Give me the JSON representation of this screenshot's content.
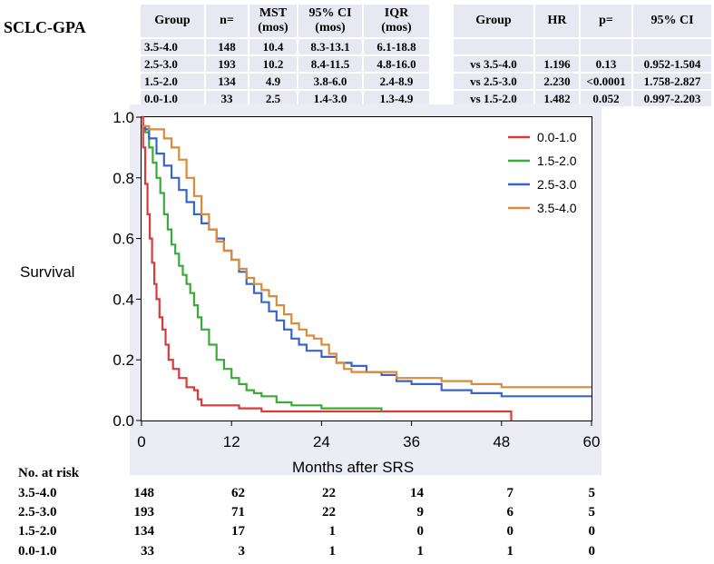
{
  "title": "SCLC-GPA",
  "table_left": {
    "headers": [
      [
        "Group"
      ],
      [
        "n="
      ],
      [
        "MST",
        "(mos)"
      ],
      [
        "95% CI",
        "(mos)"
      ],
      [
        "IQR",
        "(mos)"
      ]
    ],
    "rows": [
      [
        "3.5-4.0",
        "148",
        "10.4",
        "8.3-13.1",
        "6.1-18.8"
      ],
      [
        "2.5-3.0",
        "193",
        "10.2",
        "8.4-11.5",
        "4.8-16.0"
      ],
      [
        "1.5-2.0",
        "134",
        "4.9",
        "3.8-6.0",
        "2.4-8.9"
      ],
      [
        "0.0-1.0",
        "33",
        "2.5",
        "1.4-3.0",
        "1.3-4.9"
      ]
    ]
  },
  "table_right": {
    "headers": [
      "Group",
      "HR",
      "p=",
      "95% CI"
    ],
    "rows": [
      [
        "",
        "",
        "",
        ""
      ],
      [
        "vs 3.5-4.0",
        "1.196",
        "0.13",
        "0.952-1.504"
      ],
      [
        "vs 2.5-3.0",
        "2.230",
        "<0.0001",
        "1.758-2.827"
      ],
      [
        "vs 1.5-2.0",
        "1.482",
        "0.052",
        "0.997-2.203"
      ]
    ]
  },
  "risk_table": {
    "title": "No. at risk",
    "rows": [
      {
        "group": "3.5-4.0",
        "values": [
          "148",
          "62",
          "22",
          "14",
          "7",
          "5"
        ]
      },
      {
        "group": "2.5-3.0",
        "values": [
          "193",
          "71",
          "22",
          "9",
          "6",
          "5"
        ]
      },
      {
        "group": "1.5-2.0",
        "values": [
          "134",
          "17",
          "1",
          "0",
          "0",
          "0"
        ]
      },
      {
        "group": "0.0-1.0",
        "values": [
          "33",
          "3",
          "1",
          "1",
          "1",
          "0"
        ]
      }
    ]
  },
  "chart_data": {
    "type": "line",
    "title": "",
    "xlabel": "Months after SRS",
    "ylabel": "Survival",
    "xlim": [
      0,
      60
    ],
    "ylim": [
      0,
      1.0
    ],
    "x_ticks": [
      0,
      12,
      24,
      36,
      48,
      60
    ],
    "y_ticks": [
      "0.0",
      "0.2",
      "0.4",
      "0.6",
      "0.8",
      "1.0"
    ],
    "legend": "top-right",
    "series": [
      {
        "name": "0.0-1.0",
        "color": "#d93a3a",
        "points": [
          [
            0,
            1.0
          ],
          [
            0.2,
            0.9
          ],
          [
            0.5,
            0.78
          ],
          [
            0.8,
            0.68
          ],
          [
            1.1,
            0.6
          ],
          [
            1.4,
            0.52
          ],
          [
            1.7,
            0.45
          ],
          [
            2.0,
            0.4
          ],
          [
            2.4,
            0.34
          ],
          [
            2.8,
            0.3
          ],
          [
            3.2,
            0.25
          ],
          [
            3.6,
            0.2
          ],
          [
            4.2,
            0.17
          ],
          [
            5.0,
            0.14
          ],
          [
            6.0,
            0.11
          ],
          [
            7.0,
            0.1
          ],
          [
            7.5,
            0.07
          ],
          [
            8.0,
            0.05
          ],
          [
            12.0,
            0.05
          ],
          [
            13.0,
            0.04
          ],
          [
            16.0,
            0.03
          ],
          [
            18.0,
            0.03
          ],
          [
            24.0,
            0.03
          ],
          [
            48.0,
            0.03
          ],
          [
            49.3,
            0.03
          ],
          [
            49.3,
            0.0
          ]
        ]
      },
      {
        "name": "1.5-2.0",
        "color": "#3aaa3a",
        "points": [
          [
            0,
            0.97
          ],
          [
            0.5,
            0.95
          ],
          [
            1.0,
            0.9
          ],
          [
            1.5,
            0.85
          ],
          [
            2.0,
            0.8
          ],
          [
            2.5,
            0.75
          ],
          [
            3.0,
            0.68
          ],
          [
            3.5,
            0.63
          ],
          [
            4.0,
            0.58
          ],
          [
            4.5,
            0.55
          ],
          [
            5.0,
            0.51
          ],
          [
            5.5,
            0.48
          ],
          [
            6.0,
            0.45
          ],
          [
            6.5,
            0.42
          ],
          [
            7.0,
            0.38
          ],
          [
            7.5,
            0.34
          ],
          [
            8.0,
            0.3
          ],
          [
            9.0,
            0.25
          ],
          [
            10.0,
            0.2
          ],
          [
            11.0,
            0.17
          ],
          [
            12.0,
            0.14
          ],
          [
            13.0,
            0.12
          ],
          [
            14.0,
            0.1
          ],
          [
            15.0,
            0.09
          ],
          [
            16.0,
            0.08
          ],
          [
            18.0,
            0.06
          ],
          [
            20.0,
            0.05
          ],
          [
            24.0,
            0.04
          ],
          [
            28.0,
            0.04
          ],
          [
            32.0,
            0.03
          ]
        ]
      },
      {
        "name": "2.5-3.0",
        "color": "#3a65c8",
        "points": [
          [
            0,
            0.97
          ],
          [
            0.5,
            0.96
          ],
          [
            1.0,
            0.93
          ],
          [
            2.0,
            0.88
          ],
          [
            3.0,
            0.84
          ],
          [
            4.0,
            0.8
          ],
          [
            5.0,
            0.76
          ],
          [
            6.0,
            0.72
          ],
          [
            7.0,
            0.68
          ],
          [
            8.0,
            0.65
          ],
          [
            9.0,
            0.63
          ],
          [
            10.0,
            0.6
          ],
          [
            11.0,
            0.56
          ],
          [
            12.0,
            0.53
          ],
          [
            13.0,
            0.49
          ],
          [
            14.0,
            0.45
          ],
          [
            15.0,
            0.42
          ],
          [
            16.0,
            0.39
          ],
          [
            17.0,
            0.36
          ],
          [
            18.0,
            0.33
          ],
          [
            19.0,
            0.3
          ],
          [
            20.0,
            0.27
          ],
          [
            21.0,
            0.25
          ],
          [
            22.0,
            0.23
          ],
          [
            24.0,
            0.21
          ],
          [
            26.0,
            0.19
          ],
          [
            28.0,
            0.18
          ],
          [
            30.0,
            0.16
          ],
          [
            32.0,
            0.15
          ],
          [
            34.0,
            0.13
          ],
          [
            36.0,
            0.12
          ],
          [
            40.0,
            0.1
          ],
          [
            44.0,
            0.09
          ],
          [
            48.0,
            0.08
          ],
          [
            52.0,
            0.08
          ],
          [
            60.0,
            0.08
          ]
        ]
      },
      {
        "name": "3.5-4.0",
        "color": "#d98a3a",
        "points": [
          [
            0,
            0.97
          ],
          [
            0.5,
            0.97
          ],
          [
            1.0,
            0.96
          ],
          [
            2.0,
            0.96
          ],
          [
            3.0,
            0.93
          ],
          [
            4.0,
            0.9
          ],
          [
            5.0,
            0.86
          ],
          [
            6.0,
            0.8
          ],
          [
            7.0,
            0.74
          ],
          [
            8.0,
            0.68
          ],
          [
            9.0,
            0.63
          ],
          [
            10.0,
            0.59
          ],
          [
            11.0,
            0.56
          ],
          [
            12.0,
            0.53
          ],
          [
            13.0,
            0.5
          ],
          [
            14.0,
            0.47
          ],
          [
            15.0,
            0.45
          ],
          [
            16.0,
            0.43
          ],
          [
            17.0,
            0.41
          ],
          [
            18.0,
            0.38
          ],
          [
            19.0,
            0.35
          ],
          [
            20.0,
            0.32
          ],
          [
            21.0,
            0.3
          ],
          [
            22.0,
            0.28
          ],
          [
            23.0,
            0.27
          ],
          [
            24.0,
            0.25
          ],
          [
            25.0,
            0.22
          ],
          [
            26.0,
            0.19
          ],
          [
            27.0,
            0.17
          ],
          [
            28.0,
            0.16
          ],
          [
            30.0,
            0.16
          ],
          [
            32.0,
            0.16
          ],
          [
            34.0,
            0.14
          ],
          [
            36.0,
            0.14
          ],
          [
            40.0,
            0.13
          ],
          [
            44.0,
            0.12
          ],
          [
            46.0,
            0.12
          ],
          [
            48.0,
            0.11
          ],
          [
            52.0,
            0.11
          ],
          [
            60.0,
            0.11
          ]
        ]
      }
    ]
  }
}
